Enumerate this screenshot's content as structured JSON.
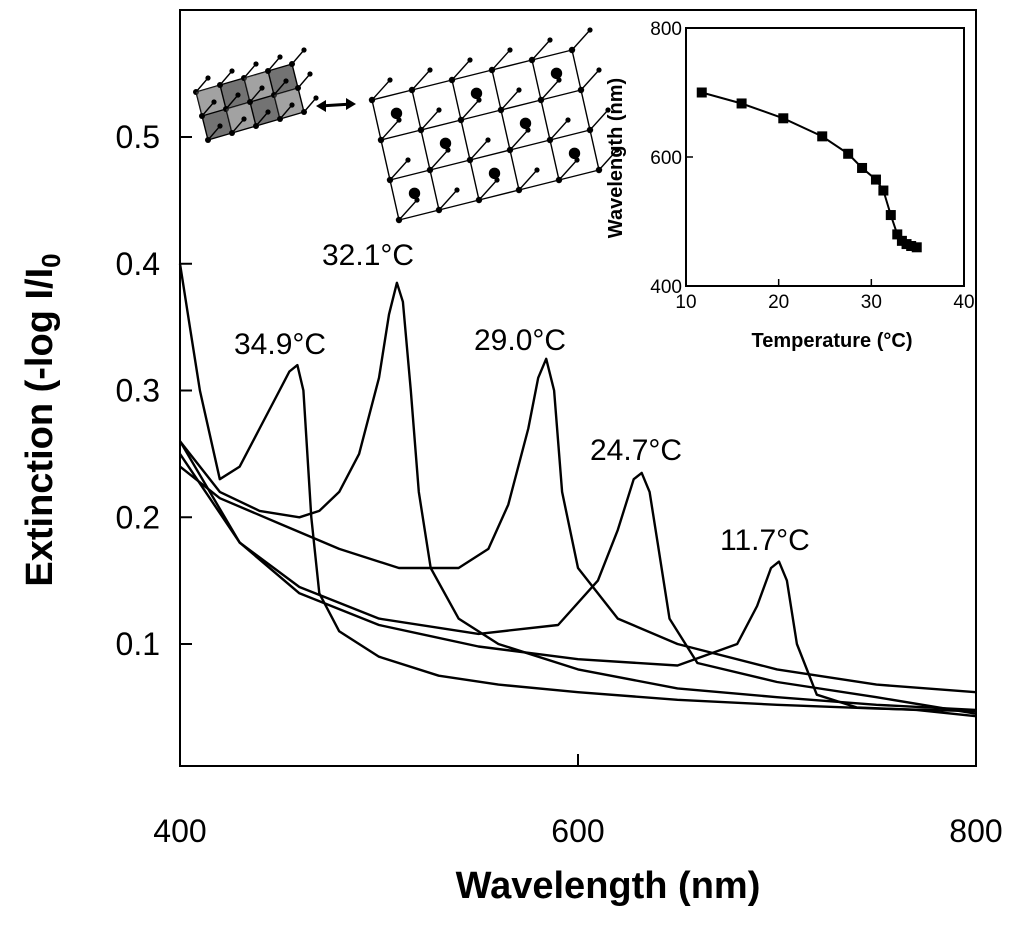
{
  "chart_data": {
    "type": "line",
    "xlabel": "Wavelength (nm)",
    "ylabel_main": "Extinction (-log I/I",
    "ylabel_sub": "0",
    "xlim": [
      400,
      800
    ],
    "ylim": [
      0,
      0.6
    ],
    "xticks": [
      "400",
      "600",
      "800"
    ],
    "yticks": [
      "0.1",
      "0.2",
      "0.3",
      "0.4",
      "0.5"
    ],
    "series": [
      {
        "name": "34.9°C",
        "label": "34.9°C",
        "x": [
          400,
          405,
          410,
          420,
          430,
          440,
          450,
          455,
          459,
          462,
          466,
          470,
          480,
          500,
          530,
          560,
          600,
          650,
          700,
          750,
          800
        ],
        "values": [
          0.4,
          0.35,
          0.3,
          0.23,
          0.24,
          0.27,
          0.3,
          0.315,
          0.32,
          0.3,
          0.2,
          0.14,
          0.11,
          0.09,
          0.075,
          0.068,
          0.062,
          0.056,
          0.052,
          0.049,
          0.047
        ]
      },
      {
        "name": "32.1°C",
        "label": "32.1°C",
        "x": [
          400,
          420,
          440,
          460,
          470,
          480,
          490,
          500,
          505,
          509,
          512,
          516,
          520,
          526,
          540,
          560,
          600,
          650,
          700,
          750,
          800
        ],
        "values": [
          0.26,
          0.22,
          0.205,
          0.2,
          0.205,
          0.22,
          0.25,
          0.31,
          0.36,
          0.385,
          0.37,
          0.3,
          0.22,
          0.16,
          0.12,
          0.1,
          0.08,
          0.065,
          0.058,
          0.052,
          0.048
        ]
      },
      {
        "name": "29.0°C",
        "label": "29.0°C",
        "x": [
          400,
          420,
          450,
          480,
          510,
          540,
          555,
          565,
          575,
          580,
          584,
          588,
          592,
          600,
          620,
          650,
          700,
          750,
          800
        ],
        "values": [
          0.24,
          0.215,
          0.195,
          0.175,
          0.16,
          0.16,
          0.175,
          0.21,
          0.27,
          0.31,
          0.325,
          0.3,
          0.22,
          0.16,
          0.12,
          0.1,
          0.08,
          0.068,
          0.062
        ]
      },
      {
        "name": "24.7°C",
        "label": "24.7°C",
        "x": [
          400,
          430,
          460,
          500,
          550,
          590,
          610,
          620,
          628,
          632,
          636,
          640,
          646,
          660,
          700,
          750,
          800
        ],
        "values": [
          0.25,
          0.18,
          0.145,
          0.12,
          0.108,
          0.115,
          0.15,
          0.19,
          0.23,
          0.235,
          0.22,
          0.18,
          0.12,
          0.085,
          0.07,
          0.058,
          0.045
        ]
      },
      {
        "name": "11.7°C",
        "label": "11.7°C",
        "x": [
          400,
          430,
          460,
          500,
          550,
          600,
          650,
          680,
          690,
          697,
          701,
          705,
          710,
          720,
          740,
          770,
          800
        ],
        "values": [
          0.26,
          0.18,
          0.14,
          0.115,
          0.098,
          0.088,
          0.083,
          0.1,
          0.13,
          0.16,
          0.165,
          0.15,
          0.1,
          0.06,
          0.05,
          0.048,
          0.043
        ]
      }
    ],
    "inset": {
      "type": "line",
      "xlabel": "Temperature (°C)",
      "ylabel": "Wavelength (nm)",
      "xlim": [
        10,
        40
      ],
      "ylim": [
        400,
        800
      ],
      "xticks": [
        "10",
        "20",
        "30",
        "40"
      ],
      "yticks": [
        "400",
        "600",
        "800"
      ],
      "x": [
        11.7,
        16,
        20.5,
        24.7,
        27.5,
        29.0,
        30.5,
        31.3,
        32.1,
        32.8,
        33.3,
        33.8,
        34.3,
        34.9
      ],
      "values": [
        700,
        683,
        660,
        632,
        605,
        583,
        565,
        548,
        510,
        480,
        470,
        465,
        462,
        460
      ]
    }
  }
}
